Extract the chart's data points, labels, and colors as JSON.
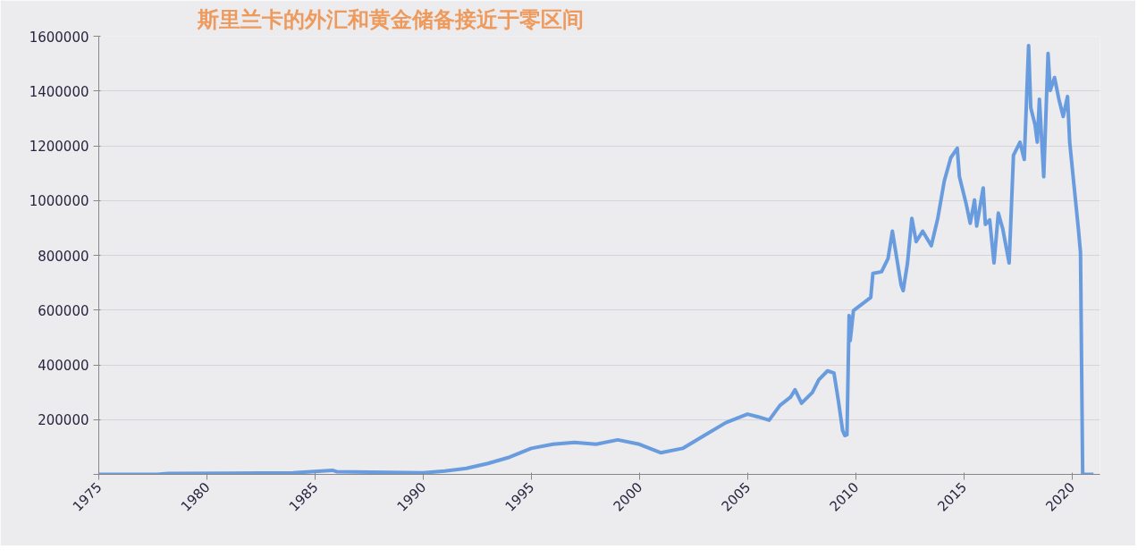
{
  "chart_data": {
    "type": "line",
    "title": "斯里兰卡的外汇和黄金储备接近于零区间",
    "xlim": [
      1975,
      2021.3
    ],
    "xticks": [
      1975,
      1980,
      1985,
      1990,
      1995,
      2000,
      2005,
      2010,
      2015,
      2020
    ],
    "ylim": [
      0,
      1600000
    ],
    "yticks": [
      {
        "value": 0,
        "label": null
      },
      200000,
      400000,
      600000,
      800000,
      1000000,
      1200000,
      1400000,
      1600000
    ],
    "grid": "y",
    "marker": "none",
    "line_style": "solid",
    "series": [
      {
        "color": "#5b93dc",
        "x": [
          1975,
          1977.7,
          1978.2,
          1984,
          1985.8,
          1986,
          1990,
          1991,
          1992,
          1993,
          1994,
          1995,
          1996,
          1997,
          1998,
          1999,
          2000,
          2001,
          2002,
          2003,
          2004,
          2005,
          2005.5,
          2006,
          2006.5,
          2007,
          2007.2,
          2007.5,
          2008,
          2008.3,
          2008.7,
          2009,
          2009.2,
          2009.4,
          2009.5,
          2009.6,
          2009.7,
          2009.75,
          2009.9,
          2010.7,
          2010.8,
          2011.2,
          2011.5,
          2011.7,
          2012.1,
          2012.2,
          2012.4,
          2012.6,
          2012.8,
          2013.1,
          2013.5,
          2013.8,
          2014.1,
          2014.4,
          2014.7,
          2014.8,
          2015.1,
          2015.3,
          2015.5,
          2015.6,
          2015.9,
          2016.0,
          2016.2,
          2016.4,
          2016.6,
          2016.8,
          2017.1,
          2017.3,
          2017.6,
          2017.8,
          2018.0,
          2018.1,
          2018.3,
          2018.4,
          2018.5,
          2018.7,
          2018.9,
          2019.0,
          2019.2,
          2019.4,
          2019.6,
          2019.8,
          2019.9,
          2020.1,
          2020.3,
          2020.4,
          2020.5,
          2021.0
        ],
        "values": [
          0,
          0,
          3000,
          6000,
          15000,
          10000,
          6000,
          12000,
          22000,
          40000,
          63000,
          95000,
          110000,
          117000,
          110000,
          126000,
          110000,
          79000,
          95000,
          142000,
          189000,
          220000,
          210000,
          198000,
          252000,
          283000,
          309000,
          260000,
          299000,
          346000,
          378000,
          370000,
          270000,
          160000,
          142000,
          145000,
          580000,
          488000,
          598000,
          646000,
          734000,
          740000,
          788000,
          888000,
          693000,
          671000,
          772000,
          935000,
          850000,
          888000,
          835000,
          935000,
          1071000,
          1156000,
          1191000,
          1087000,
          992000,
          917000,
          1002000,
          907000,
          1046000,
          913000,
          929000,
          772000,
          954000,
          898000,
          772000,
          1165000,
          1213000,
          1150000,
          1566000,
          1339000,
          1276000,
          1213000,
          1370000,
          1087000,
          1537000,
          1402000,
          1449000,
          1370000,
          1307000,
          1380000,
          1213000,
          1055000,
          898000,
          810000,
          0,
          0
        ]
      }
    ]
  }
}
